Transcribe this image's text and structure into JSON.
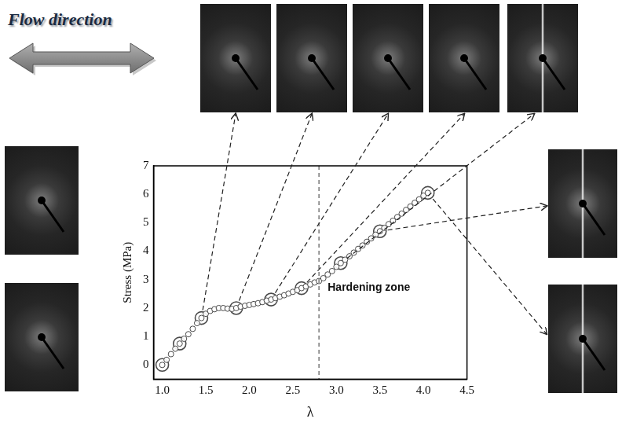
{
  "figure": {
    "flow_label": "Flow direction"
  },
  "chart_data": {
    "type": "scatter",
    "x_label": "λ",
    "y_label": "Stress (MPa)",
    "xlim": [
      0.9,
      4.5
    ],
    "xticks": [
      {
        "value": 1,
        "label": "1.0"
      },
      1.5,
      {
        "value": 2,
        "label": "2.0"
      },
      2.5,
      {
        "value": 3,
        "label": "3.0"
      },
      3.5,
      {
        "value": 4,
        "label": "4.0"
      },
      4.5
    ],
    "ylim": [
      -0.5,
      7
    ],
    "yticks": [
      0,
      1,
      2,
      3,
      4,
      5,
      6,
      7
    ],
    "grid": false,
    "series": [
      {
        "color": "#4a4a4a",
        "marker": "circle",
        "x": [
          1.0,
          1.05,
          1.1,
          1.15,
          1.2,
          1.25,
          1.3,
          1.35,
          1.4,
          1.45,
          1.5,
          1.55,
          1.6,
          1.65,
          1.7,
          1.75,
          1.8,
          1.85,
          1.9,
          1.95,
          2.0,
          2.05,
          2.1,
          2.15,
          2.2,
          2.25,
          2.3,
          2.35,
          2.4,
          2.45,
          2.5,
          2.55,
          2.6,
          2.65,
          2.7,
          2.75,
          2.8,
          2.85,
          2.9,
          2.95,
          3.0,
          3.05,
          3.1,
          3.15,
          3.2,
          3.25,
          3.3,
          3.35,
          3.4,
          3.45,
          3.5,
          3.55,
          3.6,
          3.65,
          3.7,
          3.75,
          3.8,
          3.85,
          3.9,
          3.95,
          4.0,
          4.05
        ],
        "values": [
          0,
          0.18,
          0.38,
          0.57,
          0.75,
          0.92,
          1.08,
          1.27,
          1.47,
          1.65,
          1.8,
          1.9,
          1.96,
          2.0,
          2.0,
          1.98,
          1.97,
          2.0,
          2.05,
          2.08,
          2.11,
          2.14,
          2.17,
          2.21,
          2.26,
          2.3,
          2.35,
          2.4,
          2.45,
          2.51,
          2.57,
          2.63,
          2.7,
          2.76,
          2.83,
          2.9,
          2.95,
          3.05,
          3.18,
          3.3,
          3.45,
          3.58,
          3.7,
          3.82,
          3.95,
          4.08,
          4.2,
          4.33,
          4.45,
          4.58,
          4.7,
          4.82,
          4.95,
          5.07,
          5.2,
          5.32,
          5.45,
          5.57,
          5.7,
          5.82,
          5.95,
          6.05
        ]
      },
      {
        "color": "#4a4a4a",
        "marker": "large_circle",
        "x": [
          1.0,
          1.2,
          1.45,
          1.85,
          2.25,
          2.6,
          3.05,
          3.5,
          4.05
        ],
        "values": [
          0,
          0.75,
          1.65,
          2.0,
          2.3,
          2.7,
          3.58,
          4.7,
          6.05
        ]
      }
    ],
    "annotations": [
      {
        "type": "vline",
        "x": 2.8,
        "line_style": "dashed"
      },
      {
        "type": "text",
        "text": "Hardening zone",
        "x": 2.9,
        "y": 2.7
      }
    ]
  }
}
